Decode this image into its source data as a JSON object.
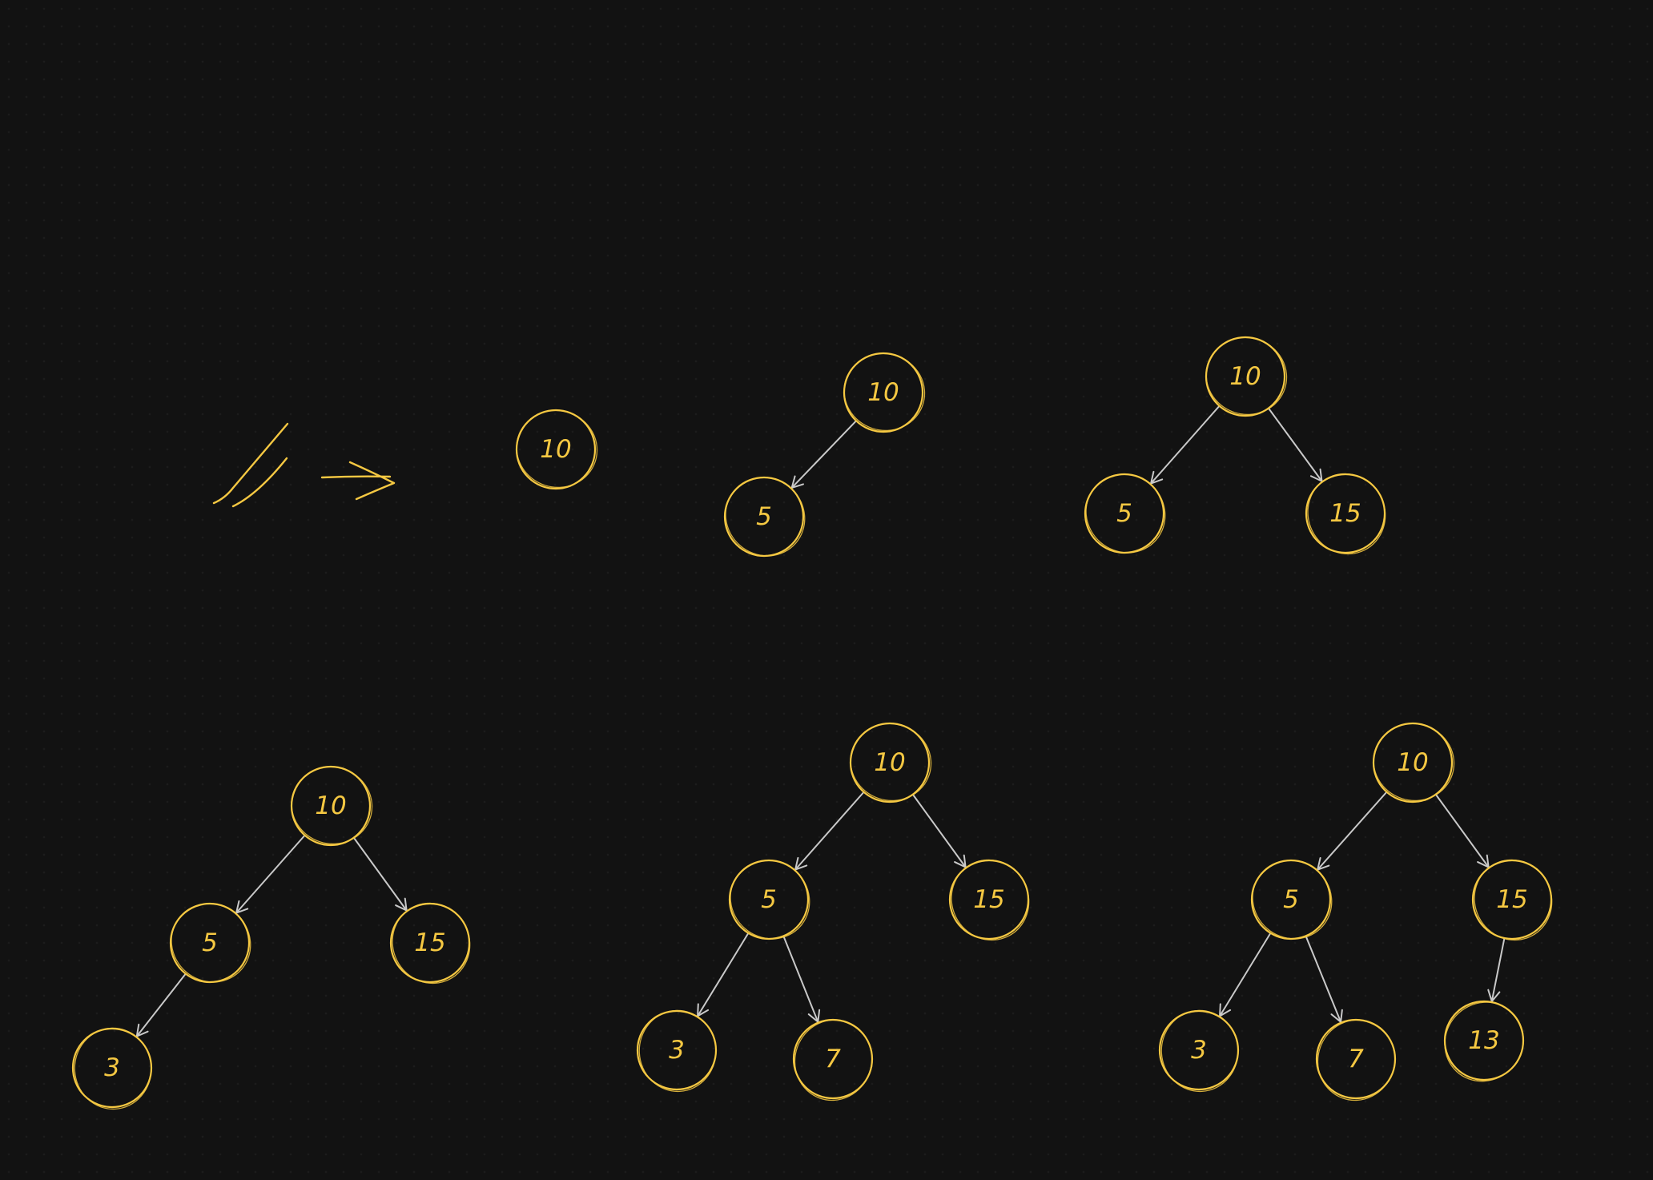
{
  "canvas": {
    "background": "#121212",
    "node_color": "#f5c842",
    "edge_color": "#c9c9c9"
  },
  "doodle": {
    "icon": "double-slash-arrow-doodle"
  },
  "trees": [
    {
      "nodes": [
        {
          "id": "root",
          "label": "10"
        }
      ],
      "edges": []
    },
    {
      "nodes": [
        {
          "id": "root",
          "label": "10"
        },
        {
          "id": "l",
          "label": "5"
        }
      ],
      "edges": [
        [
          "root",
          "l"
        ]
      ]
    },
    {
      "nodes": [
        {
          "id": "root",
          "label": "10"
        },
        {
          "id": "l",
          "label": "5"
        },
        {
          "id": "r",
          "label": "15"
        }
      ],
      "edges": [
        [
          "root",
          "l"
        ],
        [
          "root",
          "r"
        ]
      ]
    },
    {
      "nodes": [
        {
          "id": "root",
          "label": "10"
        },
        {
          "id": "l",
          "label": "5"
        },
        {
          "id": "r",
          "label": "15"
        },
        {
          "id": "ll",
          "label": "3"
        }
      ],
      "edges": [
        [
          "root",
          "l"
        ],
        [
          "root",
          "r"
        ],
        [
          "l",
          "ll"
        ]
      ]
    },
    {
      "nodes": [
        {
          "id": "root",
          "label": "10"
        },
        {
          "id": "l",
          "label": "5"
        },
        {
          "id": "r",
          "label": "15"
        },
        {
          "id": "ll",
          "label": "3"
        },
        {
          "id": "lr",
          "label": "7"
        }
      ],
      "edges": [
        [
          "root",
          "l"
        ],
        [
          "root",
          "r"
        ],
        [
          "l",
          "ll"
        ],
        [
          "l",
          "lr"
        ]
      ]
    },
    {
      "nodes": [
        {
          "id": "root",
          "label": "10"
        },
        {
          "id": "l",
          "label": "5"
        },
        {
          "id": "r",
          "label": "15"
        },
        {
          "id": "ll",
          "label": "3"
        },
        {
          "id": "lr",
          "label": "7"
        },
        {
          "id": "rl",
          "label": "13"
        }
      ],
      "edges": [
        [
          "root",
          "l"
        ],
        [
          "root",
          "r"
        ],
        [
          "l",
          "ll"
        ],
        [
          "l",
          "lr"
        ],
        [
          "r",
          "rl"
        ]
      ]
    }
  ]
}
